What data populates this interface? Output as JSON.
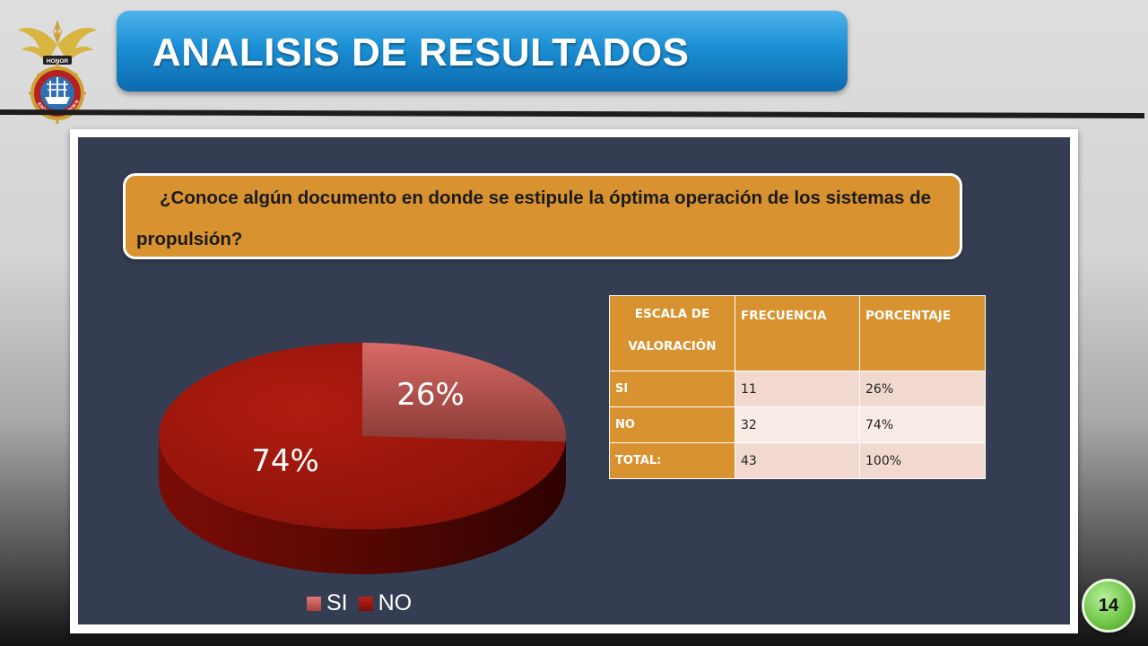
{
  "header": {
    "title": "ANALISIS DE RESULTADOS"
  },
  "logo": {
    "icon": "naval-school-emblem-icon",
    "text_top": "HONOR",
    "text_ring": "ESCUELA SUPERIOR NAVAL"
  },
  "question": {
    "text": "¿Conoce algún documento en donde se estipule la óptima operación de los sistemas de propulsión?"
  },
  "chart_data": {
    "type": "pie",
    "style": "3d",
    "categories": [
      "SI",
      "NO"
    ],
    "values": [
      26,
      74
    ],
    "labels": [
      "26%",
      "74%"
    ],
    "colors": [
      "#c0504d",
      "#a3140b"
    ],
    "legend": {
      "position": "bottom",
      "entries": [
        "SI",
        "NO"
      ]
    }
  },
  "table": {
    "headers": [
      "ESCALA DE VALORACIÓN",
      "FRECUENCIA",
      "PORCENTAJE"
    ],
    "rows": [
      {
        "label": "SI",
        "frecuencia": "11",
        "porcentaje": "26%"
      },
      {
        "label": "NO",
        "frecuencia": "32",
        "porcentaje": "74%"
      },
      {
        "label": "TOTAL:",
        "frecuencia": "43",
        "porcentaje": "100%"
      }
    ]
  },
  "page_number": "14",
  "colors": {
    "accent_blue": "#1b8fd4",
    "accent_orange": "#d8922f",
    "panel_bg": "#343d52",
    "badge_green": "#6dc445"
  }
}
